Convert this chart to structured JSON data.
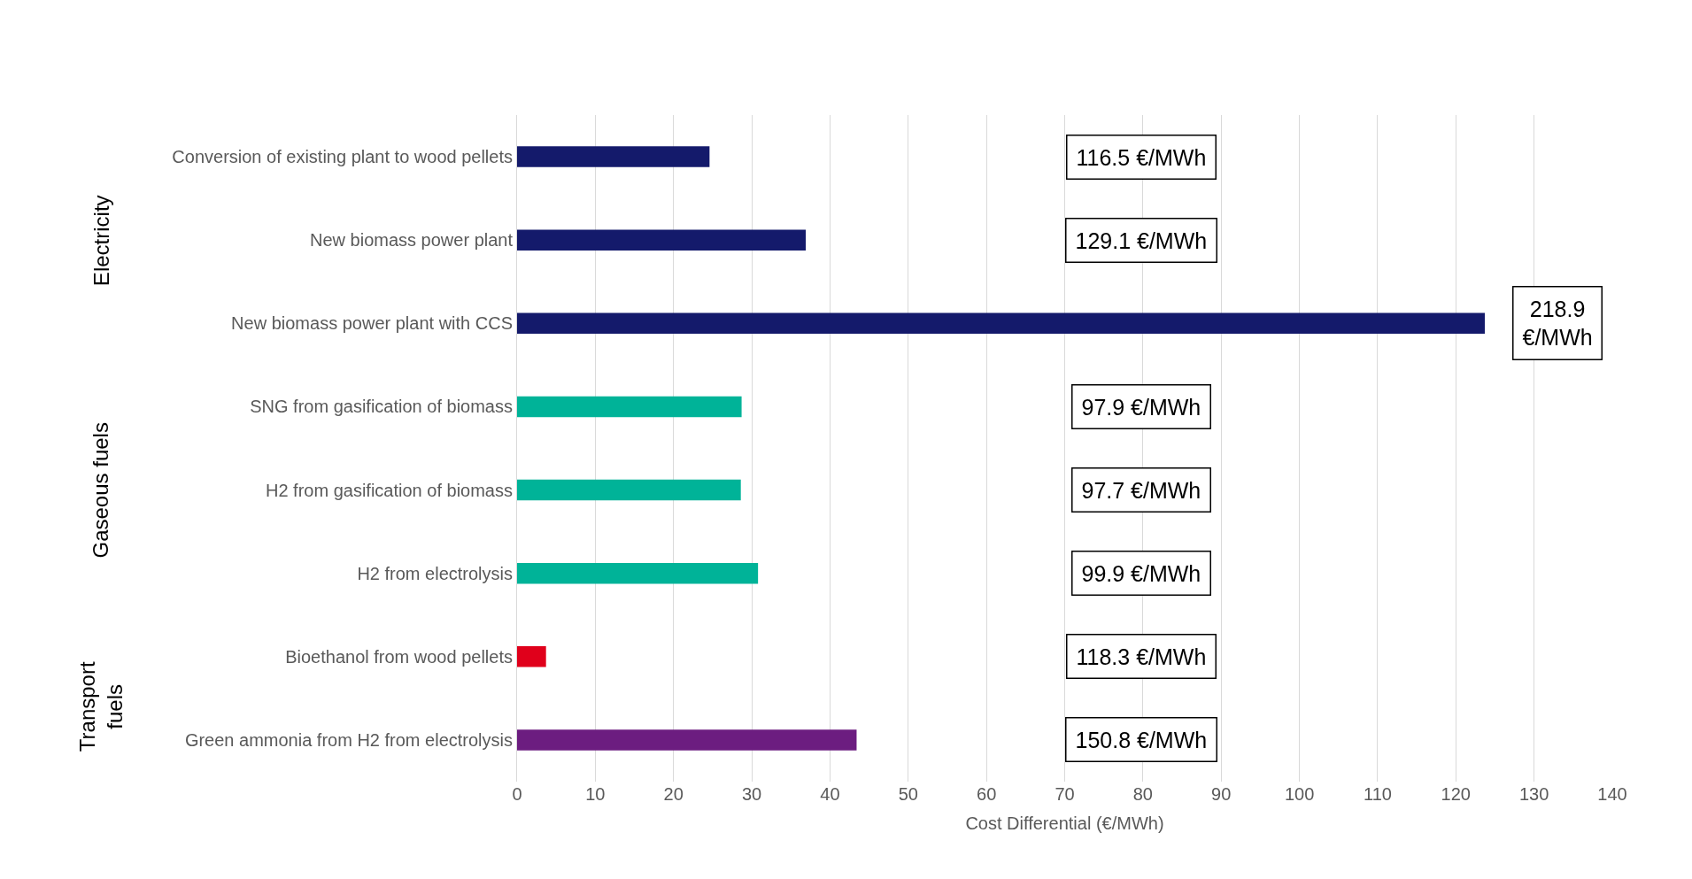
{
  "chart_data": {
    "type": "bar",
    "orientation": "horizontal",
    "xlabel": "Cost Differential (€/MWh)",
    "categories": [
      "Conversion of existing plant to wood pellets",
      "New biomass power plant",
      "New biomass power plant with CCS",
      "SNG from gasification of biomass",
      "H2 from gasification of biomass",
      "H2 from electrolysis",
      "Bioethanol from wood pellets",
      "Green ammonia from H2 from electrolysis"
    ],
    "values": [
      24.6,
      36.9,
      123.7,
      28.7,
      28.6,
      30.8,
      3.7,
      43.4
    ],
    "colors": [
      "#141a6b",
      "#141a6b",
      "#141a6b",
      "#00b398",
      "#00b398",
      "#00b398",
      "#e0001b",
      "#6c1d80"
    ],
    "xlim": [
      0,
      140
    ],
    "xticks": [
      0,
      10,
      20,
      30,
      40,
      50,
      60,
      70,
      80,
      90,
      100,
      110,
      120,
      130,
      140
    ],
    "grid": "x",
    "annotations": [
      "116.5 €/MWh",
      "129.1 €/MWh",
      "218.9\n€/MWh",
      "97.9 €/MWh",
      "97.7 €/MWh",
      "99.9 €/MWh",
      "118.3 €/MWh",
      "150.8 €/MWh",
      "Electricity",
      "Gaseous fuels",
      "Transport\nfuels"
    ]
  }
}
